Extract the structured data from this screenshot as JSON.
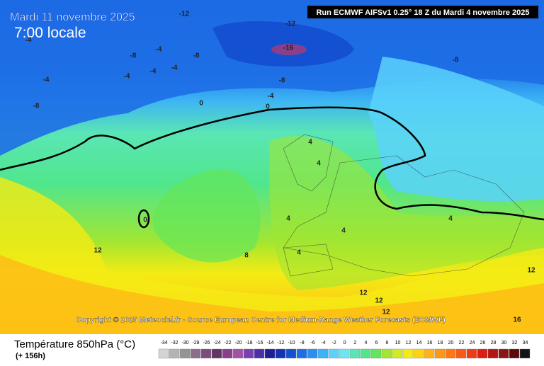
{
  "header": {
    "date": "Mardi 11 novembre 2025",
    "time": "7:00 locale",
    "run": "Run ECMWF AIFSv1 0.25° 18 Z du Mardi 4 novembre 2025"
  },
  "copyright": "Copyright © 2025 Meteociel.fr - Source European Centre for Medium-Range Weather Forecasts (ECMWF)",
  "legend": {
    "title": "Température 850hPa (°C)",
    "subtitle": "(+ 156h)",
    "scale": [
      {
        "label": "-34",
        "color": "#d4d4d4"
      },
      {
        "label": "-32",
        "color": "#b4b4b4"
      },
      {
        "label": "-30",
        "color": "#949494"
      },
      {
        "label": "-28",
        "color": "#8c6e8c"
      },
      {
        "label": "-26",
        "color": "#7a4e7a"
      },
      {
        "label": "-24",
        "color": "#663366"
      },
      {
        "label": "-22",
        "color": "#8a3f8a"
      },
      {
        "label": "-20",
        "color": "#a052a8"
      },
      {
        "label": "-18",
        "color": "#7a3fb0"
      },
      {
        "label": "-16",
        "color": "#4b2fa8"
      },
      {
        "label": "-14",
        "color": "#1e1e96"
      },
      {
        "label": "-12",
        "color": "#1432b4"
      },
      {
        "label": "-10",
        "color": "#1450d2"
      },
      {
        "label": "-8",
        "color": "#1e6ee6"
      },
      {
        "label": "-6",
        "color": "#2891f0"
      },
      {
        "label": "-4",
        "color": "#3cb4f5"
      },
      {
        "label": "-2",
        "color": "#5ad2fa"
      },
      {
        "label": "0",
        "color": "#6ee6f0"
      },
      {
        "label": "2",
        "color": "#5ae6b4"
      },
      {
        "label": "4",
        "color": "#50e68c"
      },
      {
        "label": "6",
        "color": "#64e65a"
      },
      {
        "label": "8",
        "color": "#a0e632"
      },
      {
        "label": "10",
        "color": "#d2eb1e"
      },
      {
        "label": "12",
        "color": "#f5eb14"
      },
      {
        "label": "14",
        "color": "#ffd214"
      },
      {
        "label": "16",
        "color": "#ffb414"
      },
      {
        "label": "18",
        "color": "#ff9614"
      },
      {
        "label": "20",
        "color": "#ff7814"
      },
      {
        "label": "22",
        "color": "#fa5a14"
      },
      {
        "label": "24",
        "color": "#f03c14"
      },
      {
        "label": "26",
        "color": "#dc1e14"
      },
      {
        "label": "28",
        "color": "#b41414"
      },
      {
        "label": "30",
        "color": "#8c1414"
      },
      {
        "label": "32",
        "color": "#5a0a0a"
      },
      {
        "label": "34",
        "color": "#141414"
      }
    ]
  },
  "contour_labels": [
    "-12",
    "-12",
    "-16",
    "-8",
    "-8",
    "-4",
    "-8",
    "-4",
    "-4",
    "-4",
    "-4",
    "-8",
    "-4",
    "-8",
    "-4",
    "0",
    "0",
    "0",
    "4",
    "4",
    "4",
    "4",
    "4",
    "4",
    "8",
    "12",
    "12",
    "12",
    "12",
    "12",
    "16"
  ]
}
